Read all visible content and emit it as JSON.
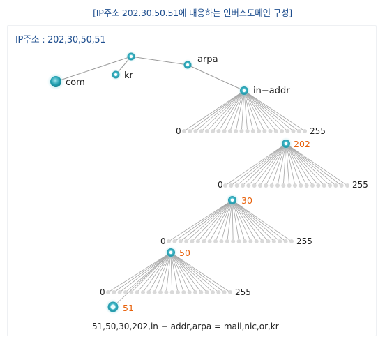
{
  "title": "[IP주소 202.30.50.51에 대응하는 인버스도메인 구성]",
  "ip_label": "IP주소 : 202,30,50,51",
  "labels": {
    "com": "com",
    "kr": "kr",
    "arpa": "arpa",
    "in_addr": "in−addr",
    "l1_start": "0",
    "l1_end": "255",
    "l1_sel": "202",
    "l2_start": "0",
    "l2_end": "255",
    "l2_sel": "30",
    "l3_start": "0",
    "l3_end": "255",
    "l3_sel": "50",
    "l4_start": "0",
    "l4_end": "255",
    "l4_sel": "51"
  },
  "footer": "51,50,30,202,in − addr,arpa = mail,nic,or,kr",
  "colors": {
    "accent": "#2aa8b8",
    "selected_text": "#e8620c",
    "title": "#1f4f8f"
  }
}
